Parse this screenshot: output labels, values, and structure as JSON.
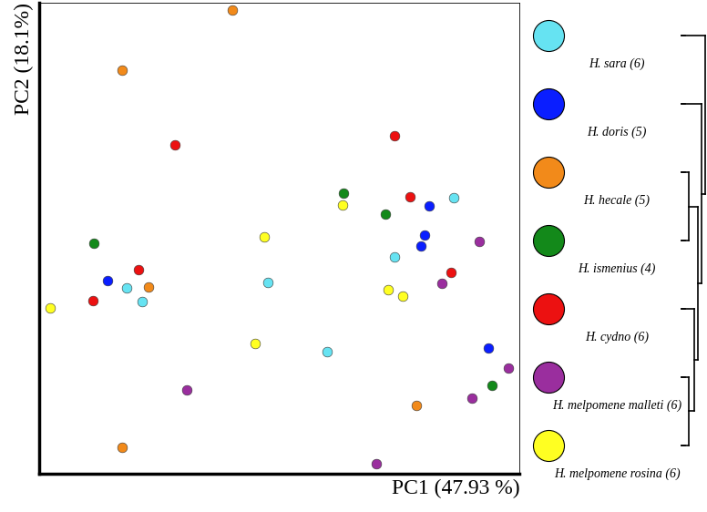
{
  "chart_data": {
    "type": "scatter",
    "x_label": "PC1 (47.93 %)",
    "y_label": "PC2 (18.1%)",
    "xlim": [
      0,
      100
    ],
    "ylim": [
      0,
      100
    ],
    "xticks": [],
    "yticks": [],
    "tick_labels": false,
    "grid": false,
    "legend": "right",
    "marker": "o",
    "series": [
      {
        "name": "H. sara (6)",
        "color": "#66e3f2",
        "x": [
          86.2,
          74.0,
          18.3,
          21.5,
          47.7,
          60.0
        ],
        "values": [
          58.6,
          46.0,
          39.5,
          36.6,
          40.6,
          25.9
        ]
      },
      {
        "name": "H. doris (5)",
        "color": "#0a1eff",
        "x": [
          81.1,
          80.2,
          79.4,
          14.2,
          93.4
        ],
        "values": [
          56.9,
          50.6,
          48.3,
          41.0,
          26.6
        ]
      },
      {
        "name": "H. hecale (5)",
        "color": "#f28a1a",
        "x": [
          40.2,
          17.4,
          22.8,
          17.4,
          78.5
        ],
        "values": [
          98.5,
          85.6,
          39.7,
          5.6,
          14.4
        ]
      },
      {
        "name": "H. ismenius (4)",
        "color": "#13891a",
        "x": [
          63.4,
          72.1,
          11.5,
          94.3
        ],
        "values": [
          59.6,
          55.0,
          48.9,
          18.8
        ]
      },
      {
        "name": "H. cydno (6)",
        "color": "#ec1111",
        "x": [
          28.3,
          74.0,
          77.2,
          20.8,
          11.3,
          85.8
        ],
        "values": [
          69.7,
          71.8,
          58.8,
          43.3,
          36.8,
          42.7
        ]
      },
      {
        "name": "H. melpomene malleti (6)",
        "color": "#9a2e9e",
        "x": [
          91.5,
          83.8,
          30.8,
          97.7,
          90.0,
          70.2
        ],
        "values": [
          49.2,
          40.4,
          17.8,
          22.4,
          16.1,
          2.1
        ]
      },
      {
        "name": "H. melpomene rosina (6)",
        "color": "#ffff22",
        "x": [
          63.2,
          46.8,
          2.3,
          72.6,
          75.7,
          44.9
        ],
        "values": [
          57.1,
          50.2,
          35.2,
          39.1,
          37.7,
          27.6
        ]
      }
    ]
  }
}
